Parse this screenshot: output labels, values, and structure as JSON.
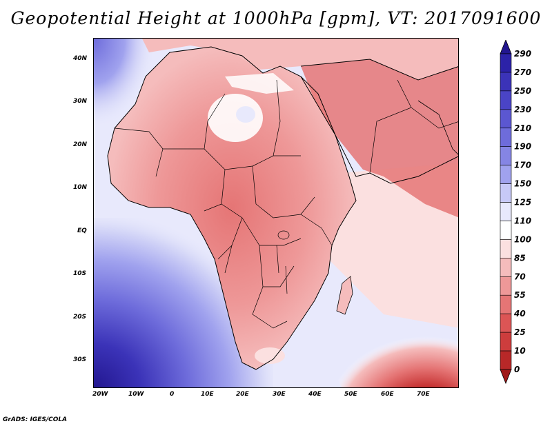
{
  "title": "Geopotential Height at 1000hPa [gpm], VT: 2017091600",
  "credit": "GrADS: IGES/COLA",
  "axes": {
    "lat_labels": [
      "40N",
      "30N",
      "20N",
      "10N",
      "EQ",
      "10S",
      "20S",
      "30S"
    ],
    "lon_labels": [
      "20W",
      "10W",
      "0",
      "10E",
      "20E",
      "30E",
      "40E",
      "50E",
      "60E",
      "70E"
    ]
  },
  "colorbar": {
    "labels": [
      "290",
      "270",
      "250",
      "230",
      "210",
      "190",
      "170",
      "150",
      "125",
      "110",
      "100",
      "85",
      "70",
      "55",
      "40",
      "25",
      "10",
      "0"
    ],
    "colors": [
      "#22168f",
      "#2c22a8",
      "#3b33b8",
      "#4a44c6",
      "#5b57d1",
      "#6e6cdb",
      "#8585e4",
      "#a0a2ee",
      "#c7c9f7",
      "#e8e9fc",
      "#ffffff",
      "#fbe0e0",
      "#f5bcbc",
      "#ee9898",
      "#e57575",
      "#dc5555",
      "#cd3d3d",
      "#b82828",
      "#a01818"
    ]
  }
}
